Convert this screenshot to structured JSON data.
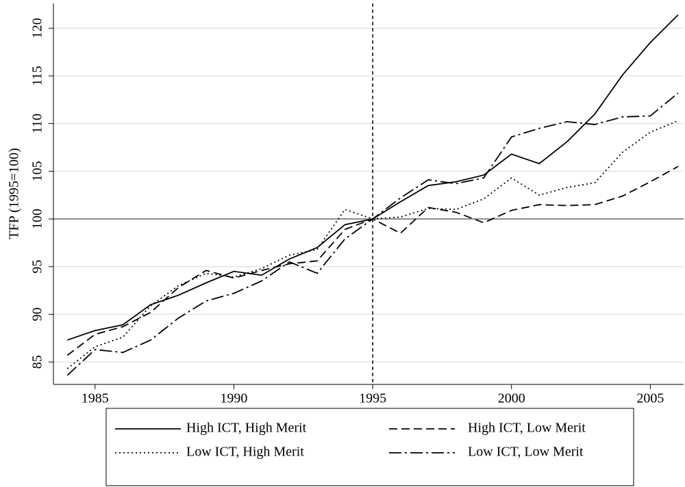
{
  "chart_data": {
    "type": "line",
    "y_label": "TFP (1995=100)",
    "x": [
      1984,
      1985,
      1986,
      1987,
      1988,
      1989,
      1990,
      1991,
      1992,
      1993,
      1994,
      1995,
      1996,
      1997,
      1998,
      1999,
      2000,
      2001,
      2002,
      2003,
      2004,
      2005,
      2006
    ],
    "series": [
      {
        "name": "High ICT, High Merit",
        "color": "#000000",
        "dash": "solid",
        "values": [
          87.3,
          88.3,
          88.9,
          91.0,
          92.0,
          93.3,
          94.5,
          94.1,
          95.8,
          97.0,
          99.4,
          100,
          101.8,
          103.5,
          103.9,
          104.6,
          106.8,
          105.8,
          108.1,
          111.0,
          115.1,
          118.5,
          121.4
        ]
      },
      {
        "name": "High ICT, Low Merit",
        "color": "#000000",
        "dash": "dashed",
        "values": [
          85.7,
          87.9,
          88.7,
          90.2,
          92.8,
          94.6,
          93.8,
          94.6,
          95.3,
          95.6,
          98.9,
          100,
          98.5,
          101.2,
          100.7,
          99.6,
          100.9,
          101.5,
          101.4,
          101.5,
          102.4,
          103.9,
          105.5
        ]
      },
      {
        "name": "Low ICT, High Merit",
        "color": "#000000",
        "dash": "dotted",
        "values": [
          84.3,
          86.6,
          87.6,
          90.9,
          93.0,
          94.3,
          93.9,
          94.8,
          96.2,
          96.8,
          101.0,
          100,
          100.2,
          101.1,
          101.0,
          102.1,
          104.3,
          102.5,
          103.3,
          103.8,
          107.0,
          109.1,
          110.3
        ]
      },
      {
        "name": "Low ICT, Low Merit",
        "color": "#000000",
        "dash": "dashdot",
        "values": [
          83.6,
          86.3,
          86.0,
          87.3,
          89.6,
          91.4,
          92.2,
          93.5,
          95.5,
          94.3,
          97.9,
          100,
          102.2,
          104.1,
          103.7,
          104.3,
          108.6,
          109.5,
          110.2,
          109.9,
          110.7,
          110.8,
          113.2
        ]
      }
    ],
    "xlim": [
      1983.5,
      2006.2
    ],
    "xticks": [
      1985,
      1990,
      1995,
      2000,
      2005
    ],
    "ylim": [
      82.65,
      122.6
    ],
    "yticks": [
      85,
      90,
      95,
      100,
      105,
      110,
      115,
      120
    ],
    "grid": true,
    "hline": 100,
    "vline": 1995,
    "legend": "bottom"
  }
}
